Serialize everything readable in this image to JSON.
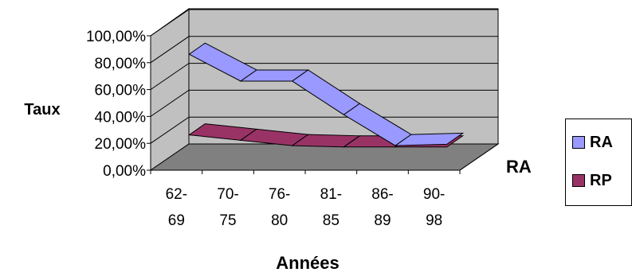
{
  "chart_data": {
    "type": "line",
    "style": "3d-ribbon",
    "title": "",
    "xlabel": "Années",
    "ylabel": "Taux",
    "depth_axis_label": "RA",
    "categories": [
      "62-69",
      "70-75",
      "76-80",
      "81-85",
      "86-89",
      "90-98"
    ],
    "category_lines": [
      [
        "62-",
        "69"
      ],
      [
        "70-",
        "75"
      ],
      [
        "76-",
        "80"
      ],
      [
        "81-",
        "85"
      ],
      [
        "86-",
        "89"
      ],
      [
        "90-",
        "98"
      ]
    ],
    "yticks": [
      "0,00%",
      "20,00%",
      "40,00%",
      "60,00%",
      "80,00%",
      "100,00%"
    ],
    "ylim": [
      0,
      1
    ],
    "grid": true,
    "legend_position": "right",
    "series": [
      {
        "name": "RA",
        "values": [
          0.78,
          0.58,
          0.58,
          0.33,
          0.1,
          0.11
        ],
        "color": "#9999ff"
      },
      {
        "name": "RP",
        "values": [
          0.18,
          0.14,
          0.1,
          0.09,
          0.09,
          0.09
        ],
        "color": "#993366"
      }
    ],
    "colors": {
      "wall": "#c0c0c0",
      "floor": "#808080",
      "grid": "#000000"
    }
  }
}
